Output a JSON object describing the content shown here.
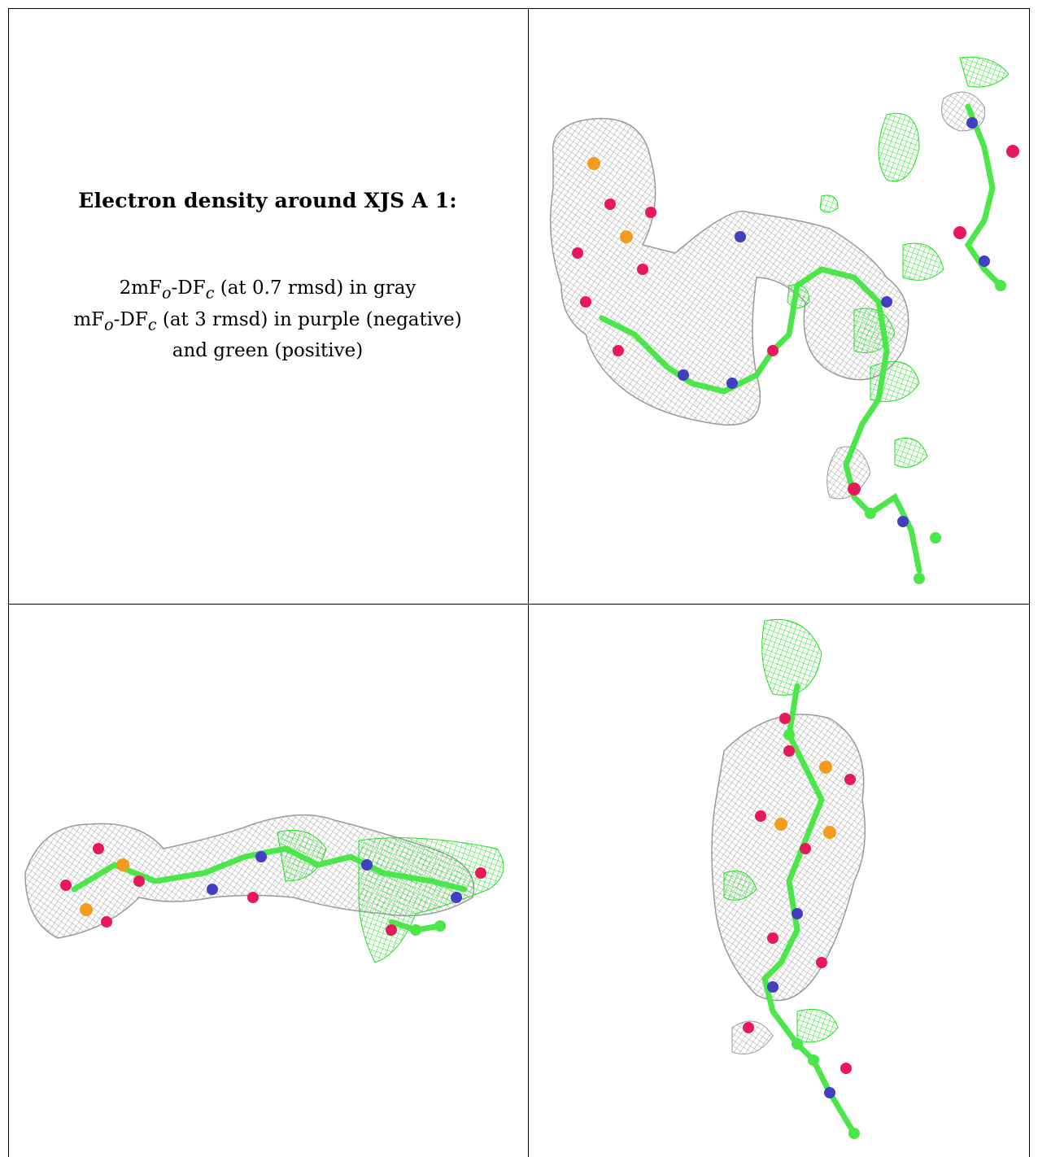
{
  "legend": {
    "title": "Electron density around XJS A 1:",
    "line1_prefix": "2mF",
    "line1_sub1": "o",
    "line1_mid": "-DF",
    "line1_sub2": "c",
    "line1_suffix": " (at 0.7 rmsd) in gray",
    "line2_prefix": "mF",
    "line2_sub1": "o",
    "line2_mid": "-DF",
    "line2_sub2": "c",
    "line2_suffix": " (at 3 rmsd) in purple (negative)",
    "line3": "and green (positive)"
  },
  "colors": {
    "mesh_gray": "#8a8a8a",
    "mesh_green": "#22e022",
    "carbon": "#4ae64a",
    "oxygen": "#e8195a",
    "nitrogen": "#4040c0",
    "phosphorus": "#f39b1c",
    "negative": "#c020c0"
  },
  "panels": [
    {
      "name": "view-1",
      "icon": "electron-density-view-front"
    },
    {
      "name": "view-2",
      "icon": "electron-density-view-side"
    },
    {
      "name": "view-3",
      "icon": "electron-density-view-top"
    }
  ]
}
